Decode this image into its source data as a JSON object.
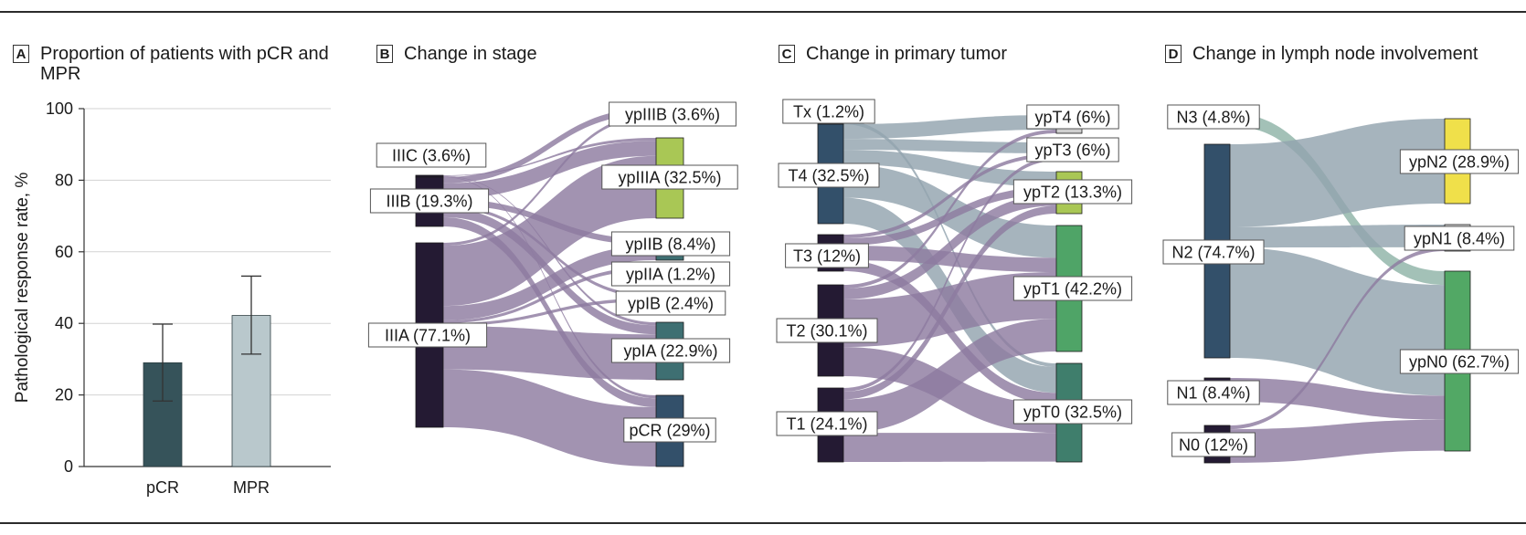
{
  "panels": {
    "a": {
      "letter": "A",
      "title": "Proportion of patients with pCR and MPR"
    },
    "b": {
      "letter": "B",
      "title": "Change in stage"
    },
    "c": {
      "letter": "C",
      "title": "Change in primary tumor"
    },
    "d": {
      "letter": "D",
      "title": "Change in lymph node involvement"
    }
  },
  "colors": {
    "pcr_bar": "#36535a",
    "mpr_bar": "#b9c8cc",
    "flow_purple": "#8d7ba0",
    "flow_gray": "#93a3ae",
    "flow_teal": "#8fb3a7",
    "stage_dark": "#241a33",
    "t4_blue": "#33506a",
    "ypIII_green": "#a9c755",
    "ypI_teal": "#3e6f72",
    "ypT0_green": "#3f7e6c",
    "ypT1_green": "#4fa467",
    "ypN2_yellow": "#f0e04a",
    "ypN0_green": "#52a865"
  },
  "chart_data": [
    {
      "type": "bar",
      "panel": "A",
      "categories": [
        "pCR",
        "MPR"
      ],
      "values": [
        29,
        42.2
      ],
      "error_low": [
        18.3,
        31.4
      ],
      "error_high": [
        39.8,
        53.2
      ],
      "ylabel": "Pathological response rate, %",
      "ylim": [
        0,
        100
      ],
      "yticks": [
        0,
        20,
        40,
        60,
        80,
        100
      ],
      "grid": true
    },
    {
      "type": "sankey",
      "panel": "B",
      "left_nodes": [
        {
          "id": "IIIC",
          "label": "IIIC (3.6%)",
          "value": 3.6
        },
        {
          "id": "IIIB",
          "label": "IIIB (19.3%)",
          "value": 19.3
        },
        {
          "id": "IIIA",
          "label": "IIIA (77.1%)",
          "value": 77.1
        }
      ],
      "right_nodes": [
        {
          "id": "ypIIIB",
          "label": "ypIIIB (3.6%)",
          "value": 3.6
        },
        {
          "id": "ypIIIA",
          "label": "ypIIIA (32.5%)",
          "value": 32.5
        },
        {
          "id": "ypIIB",
          "label": "ypIIB (8.4%)",
          "value": 8.4
        },
        {
          "id": "ypIIA",
          "label": "ypIIA (1.2%)",
          "value": 1.2
        },
        {
          "id": "ypIB",
          "label": "ypIB (2.4%)",
          "value": 2.4
        },
        {
          "id": "ypIA",
          "label": "ypIA (22.9%)",
          "value": 22.9
        },
        {
          "id": "pCR",
          "label": "pCR (29%)",
          "value": 29
        }
      ],
      "links": [
        {
          "source": "IIIC",
          "target": "ypIIIA",
          "value": 1.2
        },
        {
          "source": "IIIC",
          "target": "ypIA",
          "value": 1.2
        },
        {
          "source": "IIIC",
          "target": "pCR",
          "value": 1.2
        },
        {
          "source": "IIIB",
          "target": "ypIIIB",
          "value": 2.4
        },
        {
          "source": "IIIB",
          "target": "ypIIIA",
          "value": 6.1
        },
        {
          "source": "IIIB",
          "target": "ypIIB",
          "value": 2.4
        },
        {
          "source": "IIIB",
          "target": "ypIB",
          "value": 1.2
        },
        {
          "source": "IIIB",
          "target": "ypIA",
          "value": 3.6
        },
        {
          "source": "IIIB",
          "target": "pCR",
          "value": 3.6
        },
        {
          "source": "IIIA",
          "target": "ypIIIB",
          "value": 1.2
        },
        {
          "source": "IIIA",
          "target": "ypIIIA",
          "value": 25.2
        },
        {
          "source": "IIIA",
          "target": "ypIIB",
          "value": 6
        },
        {
          "source": "IIIA",
          "target": "ypIIA",
          "value": 1.2
        },
        {
          "source": "IIIA",
          "target": "ypIB",
          "value": 1.2
        },
        {
          "source": "IIIA",
          "target": "ypIA",
          "value": 18.1
        },
        {
          "source": "IIIA",
          "target": "pCR",
          "value": 24.2
        }
      ]
    },
    {
      "type": "sankey",
      "panel": "C",
      "left_nodes": [
        {
          "id": "Tx",
          "label": "Tx (1.2%)",
          "value": 1.2
        },
        {
          "id": "T4",
          "label": "T4 (32.5%)",
          "value": 32.5
        },
        {
          "id": "T3",
          "label": "T3 (12%)",
          "value": 12
        },
        {
          "id": "T2",
          "label": "T2 (30.1%)",
          "value": 30.1
        },
        {
          "id": "T1",
          "label": "T1 (24.1%)",
          "value": 24.1
        }
      ],
      "right_nodes": [
        {
          "id": "ypT4",
          "label": "ypT4 (6%)",
          "value": 6
        },
        {
          "id": "ypT3",
          "label": "ypT3 (6%)",
          "value": 6
        },
        {
          "id": "ypT2",
          "label": "ypT2 (13.3%)",
          "value": 13.3
        },
        {
          "id": "ypT1",
          "label": "ypT1 (42.2%)",
          "value": 42.2
        },
        {
          "id": "ypT0",
          "label": "ypT0 (32.5%)",
          "value": 32.5
        }
      ],
      "links": [
        {
          "source": "Tx",
          "target": "ypT0",
          "value": 1.2
        },
        {
          "source": "T4",
          "target": "ypT4",
          "value": 4.8
        },
        {
          "source": "T4",
          "target": "ypT3",
          "value": 3.6
        },
        {
          "source": "T4",
          "target": "ypT2",
          "value": 4.8
        },
        {
          "source": "T4",
          "target": "ypT1",
          "value": 10.8
        },
        {
          "source": "T4",
          "target": "ypT0",
          "value": 8.5
        },
        {
          "source": "T3",
          "target": "ypT3",
          "value": 1.2
        },
        {
          "source": "T3",
          "target": "ypT2",
          "value": 2.4
        },
        {
          "source": "T3",
          "target": "ypT1",
          "value": 4.8
        },
        {
          "source": "T3",
          "target": "ypT0",
          "value": 3.6
        },
        {
          "source": "T2",
          "target": "ypT4",
          "value": 1.2
        },
        {
          "source": "T2",
          "target": "ypT2",
          "value": 3.6
        },
        {
          "source": "T2",
          "target": "ypT1",
          "value": 15.7
        },
        {
          "source": "T2",
          "target": "ypT0",
          "value": 9.6
        },
        {
          "source": "T1",
          "target": "ypT3",
          "value": 1.2
        },
        {
          "source": "T1",
          "target": "ypT2",
          "value": 2.5
        },
        {
          "source": "T1",
          "target": "ypT1",
          "value": 10.9
        },
        {
          "source": "T1",
          "target": "ypT0",
          "value": 9.5
        }
      ]
    },
    {
      "type": "sankey",
      "panel": "D",
      "left_nodes": [
        {
          "id": "N3",
          "label": "N3 (4.8%)",
          "value": 4.8
        },
        {
          "id": "N2",
          "label": "N2 (74.7%)",
          "value": 74.7
        },
        {
          "id": "N1",
          "label": "N1 (8.4%)",
          "value": 8.4
        },
        {
          "id": "N0",
          "label": "N0 (12%)",
          "value": 12
        }
      ],
      "right_nodes": [
        {
          "id": "ypN2",
          "label": "ypN2 (28.9%)",
          "value": 28.9
        },
        {
          "id": "ypN1",
          "label": "ypN1 (8.4%)",
          "value": 8.4
        },
        {
          "id": "ypN0",
          "label": "ypN0 (62.7%)",
          "value": 62.7
        }
      ],
      "links": [
        {
          "source": "N3",
          "target": "ypN0",
          "value": 4.8
        },
        {
          "source": "N2",
          "target": "ypN2",
          "value": 28.9
        },
        {
          "source": "N2",
          "target": "ypN1",
          "value": 7.2
        },
        {
          "source": "N2",
          "target": "ypN0",
          "value": 38.6
        },
        {
          "source": "N1",
          "target": "ypN0",
          "value": 8.4
        },
        {
          "source": "N0",
          "target": "ypN1",
          "value": 1.2
        },
        {
          "source": "N0",
          "target": "ypN0",
          "value": 10.8
        }
      ]
    }
  ]
}
